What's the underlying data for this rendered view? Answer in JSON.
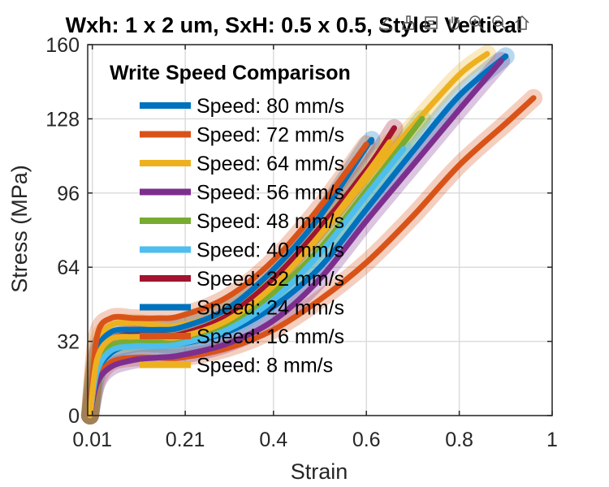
{
  "chart_data": {
    "type": "line",
    "title": "Wxh: 1 x 2 um, SxH: 0.5 x 0.5, Style: Vertical",
    "xlabel": "Strain",
    "ylabel": "Stress (MPa)",
    "xlim": [
      0,
      1
    ],
    "ylim": [
      0,
      160
    ],
    "xticks": [
      0.01,
      0.21,
      0.4,
      0.6,
      0.8,
      1
    ],
    "xtick_labels": [
      "0.01",
      "0.21",
      "0.4",
      "0.6",
      "0.8",
      "1"
    ],
    "yticks": [
      0,
      32,
      64,
      96,
      128,
      160
    ],
    "grid": true,
    "legend": {
      "title": "Write Speed Comparison",
      "placement": "top-left"
    },
    "series": [
      {
        "name": "Speed: 80 mm/s",
        "color": "#0072BD",
        "x": [
          0.005,
          0.02,
          0.05,
          0.1,
          0.15,
          0.2,
          0.3,
          0.4,
          0.5,
          0.6,
          0.7,
          0.8,
          0.9
        ],
        "y": [
          0,
          18,
          27,
          31,
          31,
          31,
          36,
          47,
          64,
          89,
          114,
          138,
          155
        ]
      },
      {
        "name": "Speed: 72 mm/s",
        "color": "#D95319",
        "x": [
          0.005,
          0.02,
          0.05,
          0.1,
          0.15,
          0.2,
          0.3,
          0.4,
          0.5,
          0.6,
          0.7,
          0.8,
          0.9,
          0.96
        ],
        "y": [
          0,
          15,
          23,
          25,
          25,
          25,
          29,
          37,
          50,
          66,
          86,
          108,
          126,
          137
        ]
      },
      {
        "name": "Speed: 64 mm/s",
        "color": "#EDB120",
        "x": [
          0.005,
          0.02,
          0.05,
          0.1,
          0.15,
          0.2,
          0.3,
          0.4,
          0.5,
          0.6,
          0.7,
          0.8,
          0.86
        ],
        "y": [
          0,
          30,
          39,
          40,
          39,
          39,
          45,
          59,
          78,
          102,
          125,
          147,
          156
        ]
      },
      {
        "name": "Speed: 56 mm/s",
        "color": "#7E2F8E",
        "x": [
          0.005,
          0.02,
          0.05,
          0.1,
          0.15,
          0.2,
          0.3,
          0.4,
          0.5,
          0.6,
          0.7,
          0.8,
          0.89
        ],
        "y": [
          0,
          14,
          21,
          24,
          25,
          26,
          31,
          41,
          59,
          84,
          108,
          132,
          153
        ]
      },
      {
        "name": "Speed: 48 mm/s",
        "color": "#77AC30",
        "x": [
          0.005,
          0.02,
          0.05,
          0.1,
          0.15,
          0.2,
          0.3,
          0.4,
          0.5,
          0.6,
          0.72
        ],
        "y": [
          0,
          22,
          30,
          32,
          32,
          33,
          39,
          53,
          72,
          97,
          128
        ]
      },
      {
        "name": "Speed: 40 mm/s",
        "color": "#4DBEEE",
        "x": [
          0.005,
          0.02,
          0.05,
          0.1,
          0.15,
          0.2,
          0.3,
          0.4,
          0.5,
          0.6,
          0.68
        ],
        "y": [
          0,
          19,
          28,
          30,
          30,
          31,
          37,
          50,
          70,
          95,
          115
        ]
      },
      {
        "name": "Speed: 32 mm/s",
        "color": "#A2142F",
        "x": [
          0.005,
          0.02,
          0.05,
          0.1,
          0.15,
          0.2,
          0.3,
          0.4,
          0.5,
          0.6,
          0.66
        ],
        "y": [
          0,
          25,
          33,
          35,
          35,
          35,
          43,
          59,
          81,
          106,
          124
        ]
      },
      {
        "name": "Speed: 24 mm/s",
        "color": "#0072BD",
        "x": [
          0.005,
          0.02,
          0.05,
          0.1,
          0.15,
          0.2,
          0.3,
          0.4,
          0.5,
          0.6,
          0.61
        ],
        "y": [
          0,
          27,
          36,
          37,
          37,
          38,
          46,
          63,
          86,
          116,
          118
        ]
      },
      {
        "name": "Speed: 16 mm/s",
        "color": "#D95319",
        "x": [
          0.005,
          0.02,
          0.05,
          0.1,
          0.15,
          0.2,
          0.3,
          0.4,
          0.5,
          0.6
        ],
        "y": [
          0,
          34,
          42,
          42,
          42,
          43,
          51,
          67,
          90,
          117
        ]
      },
      {
        "name": "Speed: 8 mm/s",
        "color": "#EDB120",
        "x": [
          0.005,
          0.02,
          0.05,
          0.1,
          0.15,
          0.2,
          0.3,
          0.4,
          0.5,
          0.6,
          0.65
        ],
        "y": [
          0,
          24,
          33,
          34,
          34,
          34,
          41,
          56,
          78,
          104,
          118
        ]
      }
    ]
  },
  "toolbar": {
    "icons": [
      "export-icon",
      "brush-icon",
      "data-tips-icon",
      "pan-icon",
      "zoom-in-icon",
      "zoom-out-icon",
      "home-icon"
    ]
  }
}
